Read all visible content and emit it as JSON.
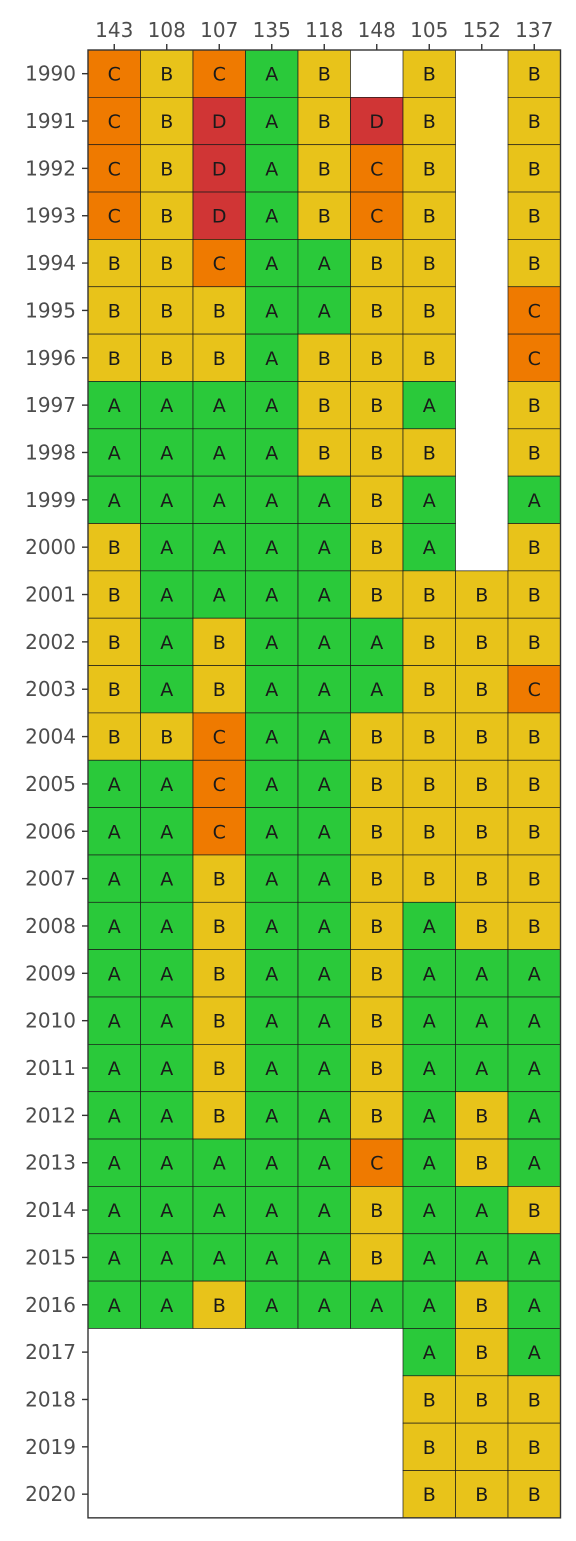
{
  "chart_data": {
    "type": "heatmap",
    "title": "",
    "xlabel": "",
    "ylabel": "",
    "x_axis_position": "top",
    "columns": [
      "143",
      "108",
      "107",
      "135",
      "118",
      "148",
      "105",
      "152",
      "137"
    ],
    "rows": [
      "1990",
      "1991",
      "1992",
      "1993",
      "1994",
      "1995",
      "1996",
      "1997",
      "1998",
      "1999",
      "2000",
      "2001",
      "2002",
      "2003",
      "2004",
      "2005",
      "2006",
      "2007",
      "2008",
      "2009",
      "2010",
      "2011",
      "2012",
      "2013",
      "2014",
      "2015",
      "2016",
      "2017",
      "2018",
      "2019",
      "2020"
    ],
    "values": [
      [
        "C",
        "B",
        "C",
        "A",
        "B",
        "",
        "B",
        "",
        "B"
      ],
      [
        "C",
        "B",
        "D",
        "A",
        "B",
        "D",
        "B",
        "",
        "B"
      ],
      [
        "C",
        "B",
        "D",
        "A",
        "B",
        "C",
        "B",
        "",
        "B"
      ],
      [
        "C",
        "B",
        "D",
        "A",
        "B",
        "C",
        "B",
        "",
        "B"
      ],
      [
        "B",
        "B",
        "C",
        "A",
        "A",
        "B",
        "B",
        "",
        "B"
      ],
      [
        "B",
        "B",
        "B",
        "A",
        "A",
        "B",
        "B",
        "",
        "C"
      ],
      [
        "B",
        "B",
        "B",
        "A",
        "B",
        "B",
        "B",
        "",
        "C"
      ],
      [
        "A",
        "A",
        "A",
        "A",
        "B",
        "B",
        "A",
        "",
        "B"
      ],
      [
        "A",
        "A",
        "A",
        "A",
        "B",
        "B",
        "B",
        "",
        "B"
      ],
      [
        "A",
        "A",
        "A",
        "A",
        "A",
        "B",
        "A",
        "",
        "A"
      ],
      [
        "B",
        "A",
        "A",
        "A",
        "A",
        "B",
        "A",
        "",
        "B"
      ],
      [
        "B",
        "A",
        "A",
        "A",
        "A",
        "B",
        "B",
        "B",
        "B"
      ],
      [
        "B",
        "A",
        "B",
        "A",
        "A",
        "A",
        "B",
        "B",
        "B"
      ],
      [
        "B",
        "A",
        "B",
        "A",
        "A",
        "A",
        "B",
        "B",
        "C"
      ],
      [
        "B",
        "B",
        "C",
        "A",
        "A",
        "B",
        "B",
        "B",
        "B"
      ],
      [
        "A",
        "A",
        "C",
        "A",
        "A",
        "B",
        "B",
        "B",
        "B"
      ],
      [
        "A",
        "A",
        "C",
        "A",
        "A",
        "B",
        "B",
        "B",
        "B"
      ],
      [
        "A",
        "A",
        "B",
        "A",
        "A",
        "B",
        "B",
        "B",
        "B"
      ],
      [
        "A",
        "A",
        "B",
        "A",
        "A",
        "B",
        "A",
        "B",
        "B"
      ],
      [
        "A",
        "A",
        "B",
        "A",
        "A",
        "B",
        "A",
        "A",
        "A"
      ],
      [
        "A",
        "A",
        "B",
        "A",
        "A",
        "B",
        "A",
        "A",
        "A"
      ],
      [
        "A",
        "A",
        "B",
        "A",
        "A",
        "B",
        "A",
        "A",
        "A"
      ],
      [
        "A",
        "A",
        "B",
        "A",
        "A",
        "B",
        "A",
        "B",
        "A"
      ],
      [
        "A",
        "A",
        "A",
        "A",
        "A",
        "C",
        "A",
        "B",
        "A"
      ],
      [
        "A",
        "A",
        "A",
        "A",
        "A",
        "B",
        "A",
        "A",
        "B"
      ],
      [
        "A",
        "A",
        "A",
        "A",
        "A",
        "B",
        "A",
        "A",
        "A"
      ],
      [
        "A",
        "A",
        "B",
        "A",
        "A",
        "A",
        "A",
        "B",
        "A"
      ],
      [
        "",
        "",
        "",
        "",
        "",
        "",
        "A",
        "B",
        "A"
      ],
      [
        "",
        "",
        "",
        "",
        "",
        "",
        "B",
        "B",
        "B"
      ],
      [
        "",
        "",
        "",
        "",
        "",
        "",
        "B",
        "B",
        "B"
      ],
      [
        "",
        "",
        "",
        "",
        "",
        "",
        "B",
        "B",
        "B"
      ]
    ],
    "colors": {
      "A": "#2ac93a",
      "B": "#e8c31a",
      "C": "#ef7a00",
      "D": "#d03535"
    },
    "grid": false,
    "legend": "none"
  }
}
